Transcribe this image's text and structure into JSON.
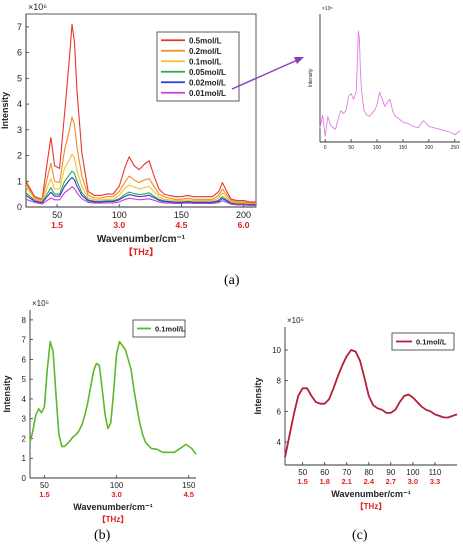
{
  "panel_labels": {
    "a": "(a)",
    "b": "(b)",
    "c": "(c)"
  },
  "chart_data": [
    {
      "id": "a",
      "type": "line",
      "ylabel": "Intensity",
      "xlabel": "Wavenumber/cm⁻¹",
      "secondary_xlabel": "【THz】",
      "y_multiplier": "×10⁶",
      "xlim": [
        25,
        210
      ],
      "ylim": [
        0,
        7.5
      ],
      "xticks": [
        50,
        100,
        150,
        200
      ],
      "yticks": [
        0,
        1,
        2,
        3,
        4,
        5,
        6,
        7
      ],
      "thz_ticks": [
        {
          "x": 50,
          "label": "1.5"
        },
        {
          "x": 100,
          "label": "3.0"
        },
        {
          "x": 150,
          "label": "4.5"
        },
        {
          "x": 200,
          "label": "6.0"
        }
      ],
      "legend_position": "top-right",
      "x": [
        25,
        32,
        38,
        42,
        45,
        48,
        52,
        56,
        60,
        62,
        64,
        66,
        70,
        75,
        80,
        85,
        90,
        95,
        100,
        105,
        108,
        112,
        116,
        120,
        124,
        128,
        132,
        136,
        140,
        145,
        150,
        155,
        160,
        165,
        170,
        175,
        180,
        183,
        186,
        190,
        195,
        200,
        205,
        210
      ],
      "series": [
        {
          "name": "0.5mol/L",
          "color": "#e8352f",
          "values": [
            1.0,
            0.4,
            0.3,
            1.7,
            2.7,
            1.6,
            1.5,
            3.6,
            5.8,
            7.1,
            6.4,
            4.5,
            2.1,
            0.6,
            0.45,
            0.45,
            0.5,
            0.5,
            0.8,
            1.6,
            1.95,
            1.6,
            1.45,
            1.65,
            1.8,
            1.2,
            0.7,
            0.5,
            0.45,
            0.4,
            0.4,
            0.45,
            0.4,
            0.4,
            0.4,
            0.4,
            0.6,
            0.95,
            0.65,
            0.3,
            0.25,
            0.25,
            0.2,
            0.2
          ]
        },
        {
          "name": "0.2mol/L",
          "color": "#f08a24",
          "values": [
            0.9,
            0.35,
            0.25,
            1.1,
            1.7,
            1.0,
            0.95,
            2.2,
            3.0,
            3.5,
            3.2,
            2.3,
            1.2,
            0.45,
            0.35,
            0.35,
            0.4,
            0.4,
            0.6,
            1.0,
            1.2,
            1.05,
            0.95,
            1.05,
            1.1,
            0.8,
            0.5,
            0.4,
            0.35,
            0.3,
            0.3,
            0.35,
            0.3,
            0.3,
            0.3,
            0.3,
            0.45,
            0.7,
            0.5,
            0.25,
            0.2,
            0.2,
            0.15,
            0.15
          ]
        },
        {
          "name": "0.1mol/L",
          "color": "#f2c12e",
          "values": [
            0.8,
            0.3,
            0.22,
            0.75,
            1.1,
            0.7,
            0.7,
            1.5,
            1.85,
            2.05,
            1.9,
            1.4,
            0.8,
            0.35,
            0.28,
            0.28,
            0.3,
            0.3,
            0.45,
            0.75,
            0.85,
            0.78,
            0.7,
            0.75,
            0.8,
            0.6,
            0.4,
            0.3,
            0.28,
            0.25,
            0.25,
            0.28,
            0.25,
            0.25,
            0.25,
            0.25,
            0.35,
            0.55,
            0.4,
            0.2,
            0.15,
            0.15,
            0.12,
            0.12
          ]
        },
        {
          "name": "0.05mol/L",
          "color": "#2aa84a",
          "values": [
            0.55,
            0.25,
            0.18,
            0.5,
            0.75,
            0.5,
            0.5,
            1.0,
            1.25,
            1.4,
            1.3,
            1.0,
            0.55,
            0.28,
            0.22,
            0.22,
            0.24,
            0.24,
            0.32,
            0.5,
            0.58,
            0.52,
            0.48,
            0.5,
            0.55,
            0.42,
            0.3,
            0.24,
            0.22,
            0.2,
            0.2,
            0.22,
            0.2,
            0.2,
            0.2,
            0.2,
            0.26,
            0.4,
            0.3,
            0.16,
            0.12,
            0.12,
            0.1,
            0.1
          ]
        },
        {
          "name": "0.02mol/L",
          "color": "#2b3fd6",
          "values": [
            0.45,
            0.22,
            0.16,
            0.4,
            0.58,
            0.42,
            0.42,
            0.8,
            1.05,
            1.15,
            1.05,
            0.8,
            0.45,
            0.24,
            0.2,
            0.2,
            0.21,
            0.21,
            0.28,
            0.42,
            0.48,
            0.44,
            0.4,
            0.42,
            0.46,
            0.36,
            0.26,
            0.21,
            0.2,
            0.18,
            0.18,
            0.2,
            0.18,
            0.18,
            0.18,
            0.18,
            0.22,
            0.33,
            0.25,
            0.14,
            0.1,
            0.1,
            0.08,
            0.08
          ]
        },
        {
          "name": "0.01mol/L",
          "color": "#cf3ad6",
          "values": [
            0.3,
            0.18,
            0.12,
            0.25,
            0.35,
            0.28,
            0.28,
            0.55,
            0.7,
            0.78,
            0.72,
            0.55,
            0.32,
            0.18,
            0.15,
            0.15,
            0.16,
            0.16,
            0.2,
            0.3,
            0.34,
            0.31,
            0.28,
            0.3,
            0.32,
            0.26,
            0.2,
            0.16,
            0.15,
            0.14,
            0.14,
            0.15,
            0.14,
            0.14,
            0.14,
            0.14,
            0.17,
            0.24,
            0.19,
            0.11,
            0.08,
            0.08,
            0.06,
            0.06
          ]
        }
      ]
    },
    {
      "id": "a-inset",
      "type": "line",
      "ylabel": "Intensity",
      "y_multiplier": "×10⁵",
      "xlim": [
        -10,
        260
      ],
      "ylim": [
        0,
        9
      ],
      "xticks": [
        0,
        50,
        100,
        150,
        200,
        250
      ],
      "color": "#e27be6",
      "x": [
        -10,
        -5,
        0,
        5,
        10,
        15,
        20,
        25,
        30,
        35,
        40,
        45,
        50,
        55,
        60,
        62,
        64,
        66,
        68,
        70,
        75,
        80,
        85,
        90,
        95,
        100,
        105,
        110,
        115,
        120,
        125,
        130,
        135,
        140,
        150,
        160,
        170,
        180,
        185,
        190,
        200,
        210,
        220,
        230,
        240,
        250,
        260
      ],
      "values": [
        1.0,
        1.9,
        0.4,
        1.8,
        1.2,
        1.0,
        0.9,
        1.6,
        2.2,
        2.0,
        2.2,
        3.2,
        3.4,
        3.0,
        3.6,
        5.5,
        7.8,
        7.2,
        5.0,
        3.6,
        2.2,
        1.9,
        1.8,
        2.0,
        2.2,
        2.6,
        3.5,
        3.0,
        2.5,
        2.8,
        3.0,
        2.2,
        1.8,
        1.7,
        1.4,
        1.3,
        1.1,
        1.0,
        1.3,
        1.5,
        1.1,
        1.0,
        0.9,
        0.8,
        0.7,
        0.5,
        0.8
      ]
    },
    {
      "id": "b",
      "type": "line",
      "ylabel": "Intensity",
      "xlabel": "Wavenumber/cm⁻¹",
      "secondary_xlabel": "【THz】",
      "y_multiplier": "×10⁵",
      "xlim": [
        40,
        155
      ],
      "ylim": [
        0,
        8.5
      ],
      "xticks": [
        50,
        100,
        150
      ],
      "yticks": [
        0,
        1,
        2,
        3,
        4,
        5,
        6,
        7,
        8
      ],
      "thz_ticks": [
        {
          "x": 50,
          "label": "1.5"
        },
        {
          "x": 100,
          "label": "3.0"
        },
        {
          "x": 150,
          "label": "4.5"
        }
      ],
      "legend_position": "top-right",
      "series": [
        {
          "name": "0.1mol/L",
          "color": "#5cb82a",
          "x": [
            40,
            42,
            44,
            46,
            48,
            50,
            52,
            54,
            56,
            58,
            60,
            62,
            64,
            66,
            68,
            70,
            72,
            74,
            76,
            78,
            80,
            82,
            84,
            86,
            88,
            90,
            92,
            94,
            96,
            98,
            100,
            102,
            104,
            106,
            108,
            110,
            112,
            114,
            116,
            118,
            120,
            124,
            128,
            132,
            136,
            140,
            144,
            148,
            152,
            155
          ],
          "values": [
            1.8,
            2.4,
            3.2,
            3.5,
            3.3,
            3.6,
            5.5,
            6.9,
            6.4,
            4.2,
            2.2,
            1.6,
            1.6,
            1.75,
            1.9,
            2.1,
            2.2,
            2.4,
            2.7,
            3.2,
            3.8,
            4.6,
            5.4,
            5.8,
            5.7,
            4.5,
            3.2,
            2.5,
            2.8,
            4.4,
            6.3,
            6.9,
            6.7,
            6.5,
            6.0,
            5.5,
            4.5,
            3.6,
            2.8,
            2.2,
            1.8,
            1.5,
            1.45,
            1.3,
            1.3,
            1.3,
            1.5,
            1.7,
            1.5,
            1.2
          ]
        }
      ]
    },
    {
      "id": "c",
      "type": "line",
      "ylabel": "Intensity",
      "xlabel": "Wavenumber/cm⁻¹",
      "secondary_xlabel": "【THz】",
      "y_multiplier": "×10⁵",
      "xlim": [
        42,
        120
      ],
      "ylim": [
        2.5,
        11.5
      ],
      "xticks": [
        50,
        60,
        70,
        80,
        90,
        100,
        110
      ],
      "yticks": [
        4,
        6,
        8,
        10
      ],
      "thz_ticks": [
        {
          "x": 50,
          "label": "1.5"
        },
        {
          "x": 60,
          "label": "1.8"
        },
        {
          "x": 70,
          "label": "2.1"
        },
        {
          "x": 80,
          "label": "2.4"
        },
        {
          "x": 90,
          "label": "2.7"
        },
        {
          "x": 100,
          "label": "3.0"
        },
        {
          "x": 110,
          "label": "3.3"
        }
      ],
      "legend_position": "top-right",
      "series": [
        {
          "name": "0.1mol/L",
          "color": "#b41f3a",
          "x": [
            42,
            44,
            46,
            48,
            50,
            52,
            54,
            56,
            58,
            60,
            62,
            64,
            66,
            68,
            70,
            72,
            74,
            76,
            78,
            80,
            82,
            84,
            86,
            88,
            90,
            92,
            94,
            96,
            98,
            100,
            102,
            104,
            106,
            108,
            110,
            112,
            114,
            116,
            118,
            120
          ],
          "values": [
            3.0,
            4.4,
            5.8,
            7.0,
            7.5,
            7.5,
            7.0,
            6.6,
            6.5,
            6.5,
            6.8,
            7.5,
            8.3,
            9.0,
            9.6,
            10.0,
            9.9,
            9.3,
            8.2,
            7.0,
            6.4,
            6.2,
            6.1,
            5.9,
            5.9,
            6.1,
            6.6,
            7.0,
            7.1,
            6.9,
            6.6,
            6.3,
            6.1,
            6.0,
            5.8,
            5.7,
            5.6,
            5.6,
            5.7,
            5.8
          ]
        }
      ]
    }
  ]
}
